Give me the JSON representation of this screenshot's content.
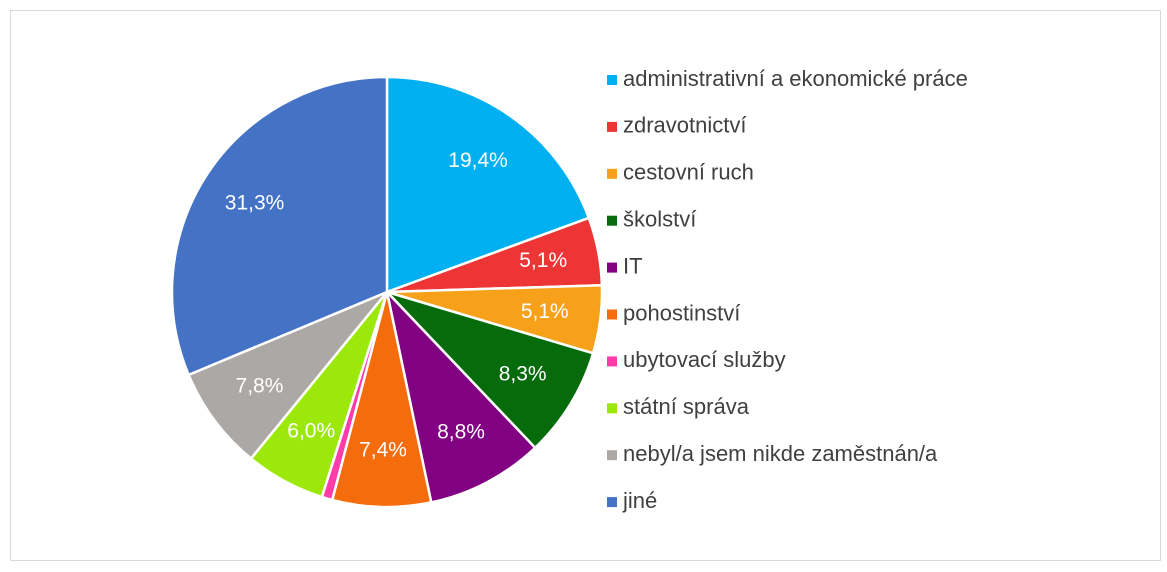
{
  "chart_data": {
    "type": "pie",
    "categories": [
      "administrativní a ekonomické práce",
      "zdravotnictví",
      "cestovní ruch",
      "školství",
      "IT",
      "pohostinství",
      "ubytovací služby",
      "státní správa",
      "nebyl/a jsem nikde zaměstnán/a",
      "jiné"
    ],
    "values": [
      19.4,
      5.1,
      5.1,
      8.3,
      8.8,
      7.4,
      0.8,
      6.0,
      7.8,
      31.3
    ],
    "value_labels": [
      "19,4%",
      "5,1%",
      "5,1%",
      "8,3%",
      "8,8%",
      "7,4%",
      null,
      "6,0%",
      "7,8%",
      "31,3%"
    ],
    "colors": [
      "#00b0f0",
      "#ee3535",
      "#f7a11a",
      "#056b0b",
      "#820082",
      "#f46c0c",
      "#ff3caa",
      "#9be80a",
      "#aca8a6",
      "#4472c4"
    ],
    "legend": "right"
  }
}
